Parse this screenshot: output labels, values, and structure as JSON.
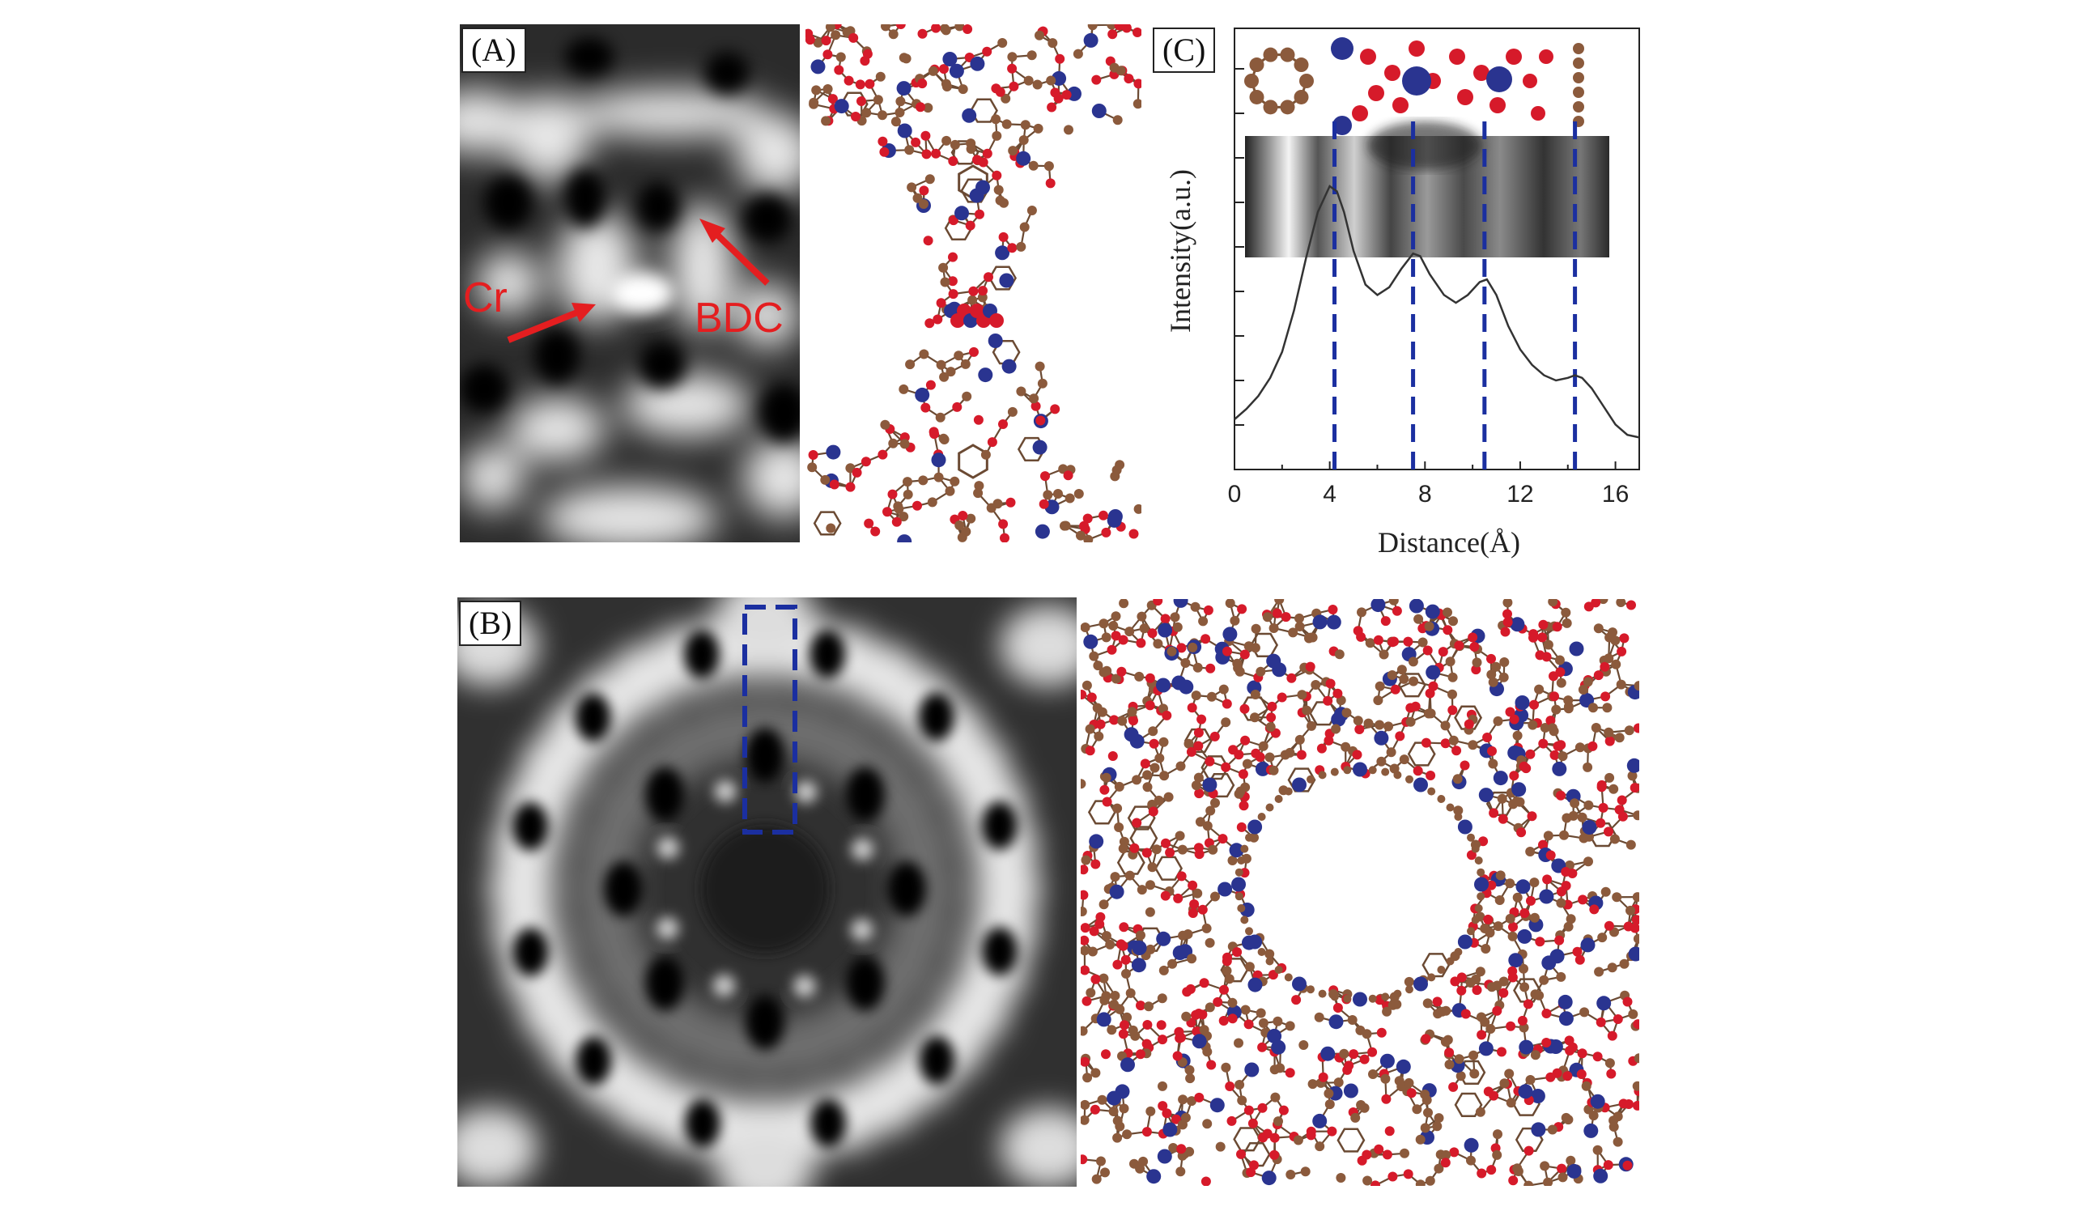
{
  "panels": {
    "a": {
      "label": "(A)",
      "annotations": [
        {
          "text": "Cr"
        },
        {
          "text": "BDC"
        }
      ]
    },
    "b": {
      "label": "(B)"
    },
    "c": {
      "label": "(C)"
    }
  },
  "colors": {
    "metal": "#2a3490",
    "oxygen": "#d61a2a",
    "carbon": "#8b5a3c",
    "annotation": "#e41e20",
    "guide": "#1b2fa0",
    "curve": "#333333"
  },
  "chart_data": {
    "type": "line",
    "xlabel": "Distance(Å)",
    "ylabel": "Intensity(a.u.)",
    "xlim": [
      0,
      17
    ],
    "ylim": [
      0,
      1.4
    ],
    "xticks": [
      0,
      4,
      8,
      12,
      16
    ],
    "series": [
      {
        "x": [
          0,
          0.5,
          1,
          1.5,
          2,
          2.5,
          3,
          3.5,
          4,
          4.3,
          4.6,
          5,
          5.5,
          6,
          6.5,
          7,
          7.5,
          7.8,
          8.2,
          8.8,
          9.3,
          9.8,
          10.3,
          10.6,
          11,
          11.5,
          12,
          12.5,
          13,
          13.5,
          14,
          14.3,
          14.6,
          15,
          15.5,
          16,
          16.5,
          17
        ],
        "y": [
          0.1,
          0.14,
          0.19,
          0.26,
          0.36,
          0.52,
          0.72,
          0.9,
          1.0,
          0.98,
          0.9,
          0.75,
          0.62,
          0.58,
          0.61,
          0.68,
          0.74,
          0.73,
          0.66,
          0.58,
          0.55,
          0.58,
          0.63,
          0.64,
          0.58,
          0.46,
          0.37,
          0.31,
          0.27,
          0.25,
          0.26,
          0.27,
          0.26,
          0.22,
          0.15,
          0.08,
          0.04,
          0.03
        ]
      }
    ],
    "guides_x": [
      4.2,
      7.5,
      10.5,
      14.3
    ]
  }
}
